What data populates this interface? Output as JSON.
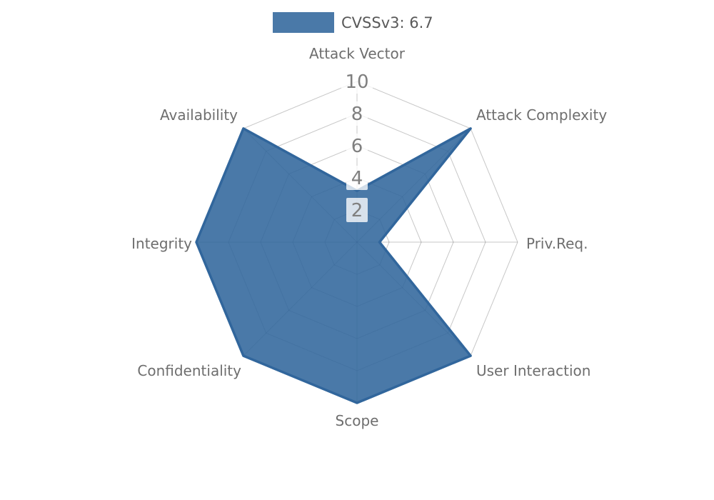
{
  "legend": {
    "label": "CVSSv3: 6.7",
    "score": "6.7"
  },
  "chart_data": {
    "type": "radar",
    "title": "",
    "categories": [
      "Attack Vector",
      "Attack Complexity",
      "Priv.Req.",
      "User Interaction",
      "Scope",
      "Confidentiality",
      "Integrity",
      "Availability"
    ],
    "series": [
      {
        "name": "CVSSv3: 6.7",
        "values": [
          3.2,
          10,
          1.4,
          10,
          10,
          10,
          10,
          10
        ]
      }
    ],
    "radial_ticks": [
      2,
      4,
      6,
      8,
      10
    ],
    "rlim": [
      0,
      10
    ],
    "grid": true,
    "grid_shape": "polygon",
    "legend_position": "top",
    "colors": {
      "series_fill": "rgba(49,102,156,0.88)",
      "series_stroke": "#31669c",
      "grid_line": "rgba(0,0,0,0.22)",
      "axis_label": "#6e6e6e",
      "tick_label": "#7f7f7f",
      "tick_box": "rgba(255,255,255,0.78)",
      "legend_text": "#595959"
    }
  }
}
